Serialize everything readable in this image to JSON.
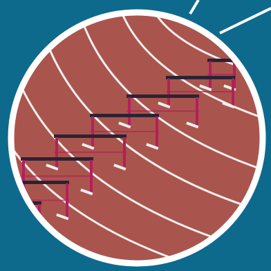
{
  "colors": {
    "background": "#0d6a8c",
    "frame": "#ffffff",
    "track": "#a9554d",
    "track_shadow": "#8f443e",
    "lane_line": "#f4efee",
    "hurdle_rail": "#2b2333",
    "hurdle_post": "#b3205a",
    "hurdle_base": "#eeeeee"
  },
  "icons": {
    "callout_lines": "callout-line-icon",
    "photo": "running-track-hurdles-photo"
  }
}
